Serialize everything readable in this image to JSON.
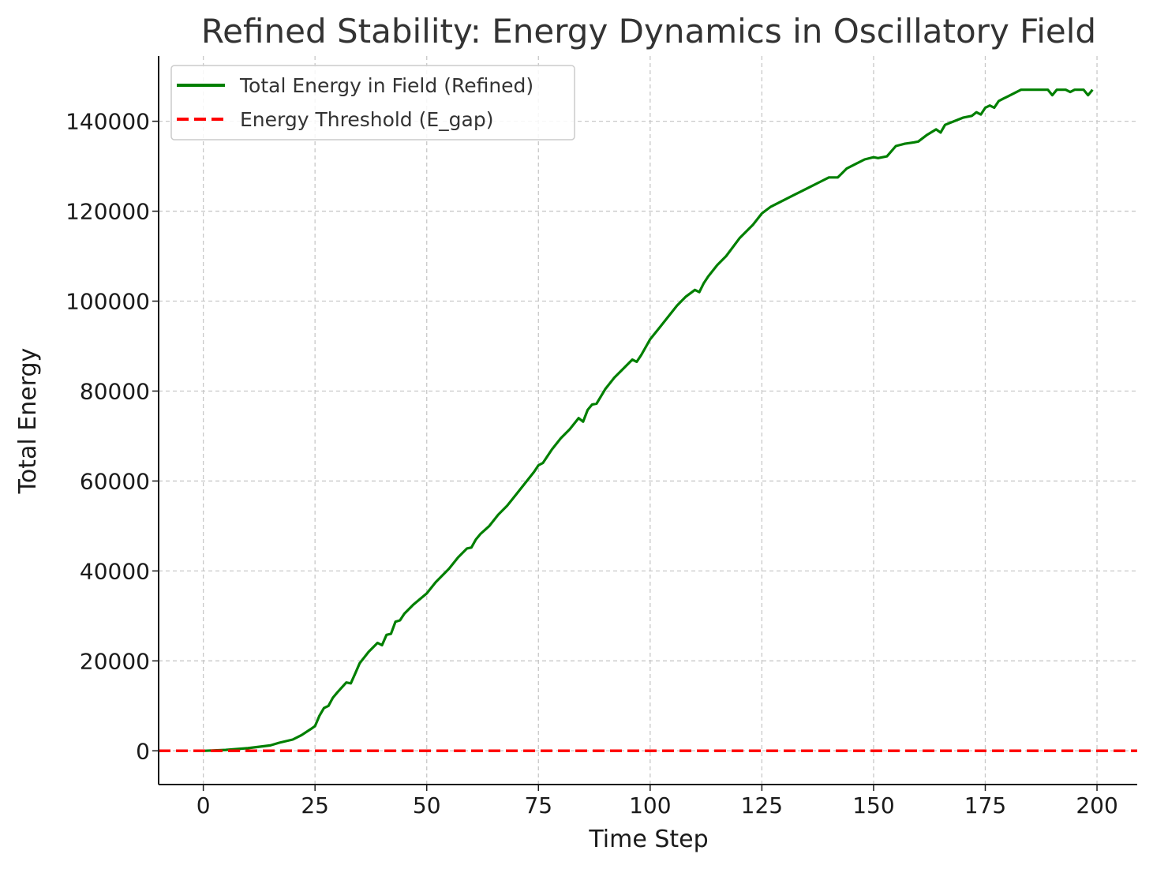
{
  "chart_data": {
    "type": "line",
    "title": "Refined Stability: Energy Dynamics in Oscillatory Field",
    "xlabel": "Time Step",
    "ylabel": "Total Energy",
    "xlim": [
      -10,
      209
    ],
    "ylim": [
      -7500,
      154500
    ],
    "xticks": [
      0,
      25,
      50,
      75,
      100,
      125,
      150,
      175,
      200
    ],
    "yticks": [
      0,
      20000,
      40000,
      60000,
      80000,
      100000,
      120000,
      140000
    ],
    "grid": true,
    "legend": "top-left",
    "series": [
      {
        "name": "Total Energy in Field (Refined)",
        "color": "#007f00",
        "style": "solid",
        "x": [
          0,
          5,
          10,
          15,
          17,
          20,
          22,
          24,
          25,
          26,
          27,
          28,
          29,
          30,
          32,
          33,
          34,
          35,
          37,
          39,
          40,
          41,
          42,
          43,
          44,
          45,
          47,
          50,
          52,
          55,
          57,
          59,
          60,
          61,
          62,
          64,
          66,
          68,
          70,
          72,
          74,
          75,
          76,
          78,
          80,
          82,
          84,
          85,
          86,
          87,
          88,
          90,
          92,
          94,
          96,
          97,
          98,
          100,
          102,
          104,
          106,
          108,
          110,
          111,
          112,
          113,
          115,
          117,
          120,
          123,
          125,
          127,
          130,
          132,
          134,
          136,
          138,
          140,
          142,
          143,
          144,
          146,
          148,
          150,
          151,
          152,
          153,
          155,
          157,
          159,
          160,
          162,
          164,
          165,
          166,
          168,
          170,
          172,
          173,
          174,
          175,
          176,
          177,
          178,
          179,
          180,
          182,
          183,
          185,
          189,
          190,
          191,
          193,
          194,
          195,
          197,
          198,
          199
        ],
        "y": [
          0,
          200,
          600,
          1200,
          1800,
          2500,
          3500,
          4800,
          5500,
          7800,
          9500,
          10000,
          11800,
          13000,
          15200,
          15000,
          17200,
          19500,
          22000,
          24000,
          23500,
          25800,
          26000,
          28700,
          29000,
          30500,
          32500,
          35000,
          37500,
          40500,
          43000,
          45000,
          45200,
          47000,
          48200,
          50000,
          52500,
          54500,
          57000,
          59500,
          62000,
          63500,
          64000,
          67000,
          69500,
          71500,
          74000,
          73200,
          75800,
          77000,
          77200,
          80500,
          83000,
          85000,
          87000,
          86500,
          88000,
          91500,
          94000,
          96500,
          99000,
          101000,
          102500,
          102000,
          104000,
          105500,
          108000,
          110000,
          114000,
          117000,
          119500,
          121000,
          122500,
          123500,
          124500,
          125500,
          126500,
          127500,
          127500,
          128500,
          129500,
          130500,
          131500,
          132000,
          131800,
          132000,
          132200,
          134500,
          135000,
          135300,
          135500,
          137000,
          138200,
          137500,
          139200,
          140000,
          140800,
          141200,
          142000,
          141500,
          143000,
          143500,
          143000,
          144500,
          145000,
          145500,
          146500,
          147000,
          147000,
          147000,
          145800,
          147000,
          147000,
          146500,
          147000,
          147000,
          145800,
          147000
        ]
      },
      {
        "name": "Energy Threshold (E_gap)",
        "color": "#ff0000",
        "style": "dashed",
        "x": [
          -10,
          209
        ],
        "y": [
          0,
          0
        ]
      }
    ]
  }
}
